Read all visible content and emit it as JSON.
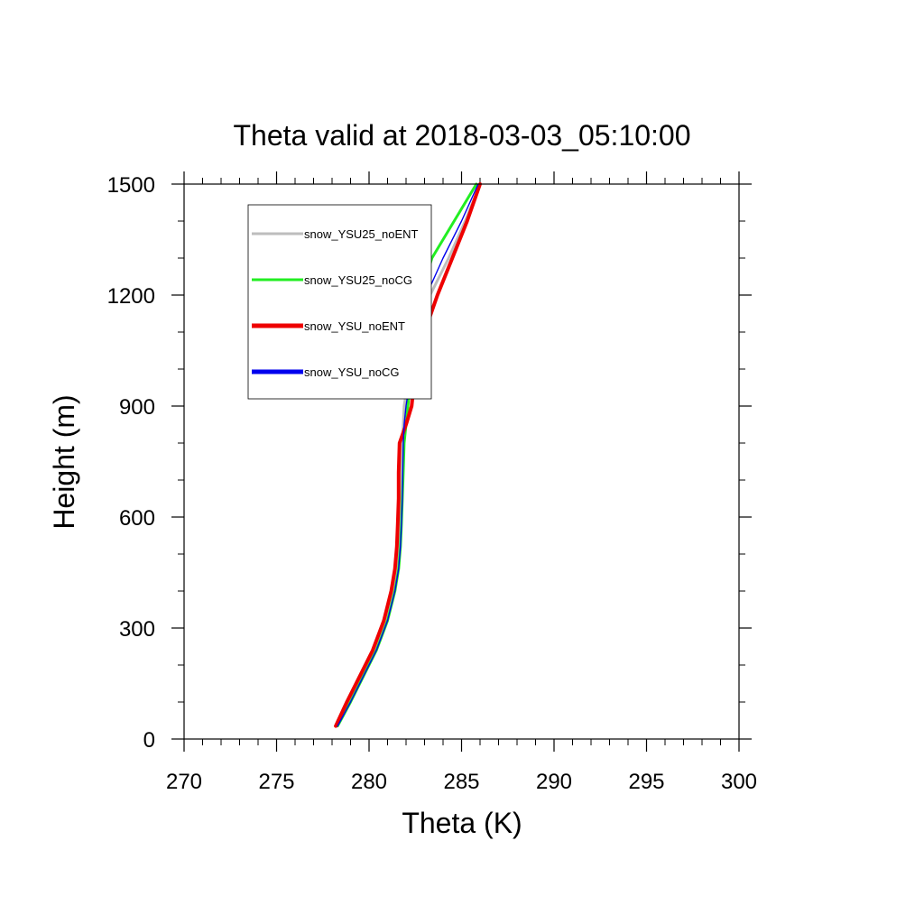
{
  "chart_data": {
    "type": "line",
    "title": "Theta valid at 2018-03-03_05:10:00",
    "xlabel": "Theta (K)",
    "ylabel": "Height (m)",
    "xlim": [
      270,
      300
    ],
    "ylim": [
      0,
      1500
    ],
    "xticks": [
      270,
      275,
      280,
      285,
      290,
      295,
      300
    ],
    "yticks": [
      0,
      300,
      600,
      900,
      1200,
      1500
    ],
    "xtick_labels": [
      "270",
      "275",
      "280",
      "285",
      "290",
      "295",
      "300"
    ],
    "ytick_labels": [
      "0",
      "300",
      "600",
      "900",
      "1200",
      "1500"
    ],
    "grid": false,
    "legend_position": "top-left",
    "series": [
      {
        "name": "snow_YSU25_noENT",
        "color": "#bdbdbd",
        "x": [
          278.2,
          278.9,
          279.6,
          280.3,
          280.9,
          281.3,
          281.5,
          281.6,
          281.65,
          281.7,
          281.75,
          281.8,
          281.85,
          281.9,
          282.2,
          282.5,
          283.3,
          284.3,
          285.2,
          286.0
        ],
        "y": [
          35,
          100,
          170,
          240,
          320,
          400,
          460,
          520,
          580,
          650,
          720,
          800,
          850,
          900,
          1000,
          1100,
          1200,
          1300,
          1400,
          1500
        ]
      },
      {
        "name": "snow_YSU25_noCG",
        "color": "#22ee22",
        "x": [
          278.3,
          279.0,
          279.7,
          280.4,
          281.0,
          281.4,
          281.6,
          281.7,
          281.75,
          281.8,
          281.85,
          281.9,
          282.0,
          282.1,
          282.3,
          282.5,
          282.8,
          283.4,
          284.6,
          285.8
        ],
        "y": [
          35,
          100,
          170,
          240,
          320,
          400,
          460,
          520,
          580,
          650,
          720,
          800,
          850,
          900,
          1000,
          1100,
          1200,
          1300,
          1400,
          1500
        ]
      },
      {
        "name": "snow_YSU_noENT",
        "color": "#ee0000",
        "x": [
          278.2,
          278.8,
          279.5,
          280.2,
          280.8,
          281.2,
          281.4,
          281.5,
          281.55,
          281.6,
          281.6,
          281.65,
          282.0,
          282.3,
          282.5,
          283.0,
          283.7,
          284.5,
          285.3,
          286.0
        ],
        "y": [
          35,
          100,
          170,
          240,
          320,
          400,
          460,
          520,
          580,
          650,
          720,
          800,
          850,
          900,
          1000,
          1100,
          1200,
          1300,
          1400,
          1500
        ]
      },
      {
        "name": "snow_YSU_noCG",
        "color": "#0000ee",
        "x": [
          278.3,
          279.0,
          279.7,
          280.4,
          281.0,
          281.4,
          281.6,
          281.7,
          281.75,
          281.8,
          281.82,
          281.85,
          281.9,
          282.0,
          282.3,
          282.5,
          283.1,
          284.0,
          285.0,
          285.9
        ],
        "y": [
          35,
          100,
          170,
          240,
          320,
          400,
          460,
          520,
          580,
          650,
          720,
          800,
          850,
          900,
          1000,
          1100,
          1200,
          1300,
          1400,
          1500
        ]
      }
    ]
  }
}
